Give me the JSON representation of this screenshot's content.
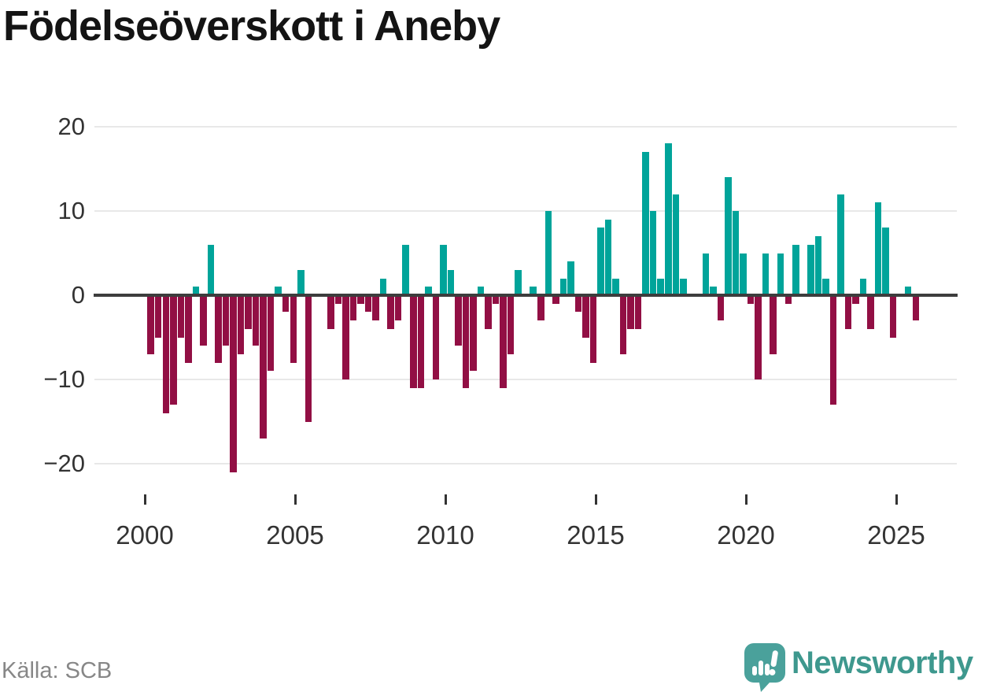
{
  "title": "Födelseöverskott i Aneby",
  "source": "Källa: SCB",
  "branding": {
    "name": "Newsworthy"
  },
  "chart_data": {
    "type": "bar",
    "frequency": "quarterly",
    "start": "2000-Q1",
    "end": "2025-Q3",
    "values_by_year": {
      "2000": [
        -7,
        -5,
        -14,
        -13
      ],
      "2001": [
        -5,
        -8,
        1,
        -6
      ],
      "2002": [
        6,
        -8,
        -6,
        -21
      ],
      "2003": [
        -7,
        -4,
        -6,
        -17
      ],
      "2004": [
        -9,
        1,
        -2,
        -8
      ],
      "2005": [
        3,
        -15,
        0,
        0
      ],
      "2006": [
        -4,
        -1,
        -10,
        -3
      ],
      "2007": [
        -1,
        -2,
        -3,
        2
      ],
      "2008": [
        -4,
        -3,
        6,
        -11
      ],
      "2009": [
        -11,
        1,
        -10,
        6
      ],
      "2010": [
        3,
        -6,
        -11,
        -9
      ],
      "2011": [
        1,
        -4,
        -1,
        -11
      ],
      "2012": [
        -7,
        3,
        0,
        1
      ],
      "2013": [
        -3,
        10,
        -1,
        2
      ],
      "2014": [
        4,
        -2,
        -5,
        -8
      ],
      "2015": [
        8,
        9,
        2,
        -7
      ],
      "2016": [
        -4,
        -4,
        17,
        10
      ],
      "2017": [
        2,
        18,
        12,
        2
      ],
      "2018": [
        0,
        0,
        5,
        1
      ],
      "2019": [
        -3,
        14,
        10,
        5
      ],
      "2020": [
        -1,
        -10,
        5,
        -7
      ],
      "2021": [
        5,
        -1,
        6,
        0
      ],
      "2022": [
        6,
        7,
        2,
        -13
      ],
      "2023": [
        12,
        -4,
        -1,
        2
      ],
      "2024": [
        -4,
        11,
        8,
        -5
      ],
      "2025": [
        0,
        1,
        -3
      ]
    },
    "x_tick_years": [
      2000,
      2005,
      2010,
      2015,
      2020,
      2025
    ],
    "y_ticks": [
      20,
      10,
      0,
      -10,
      -20
    ],
    "ylim": [
      -22,
      20
    ],
    "grid": "horizontal",
    "legend": "none",
    "colors": {
      "positive_bar": "#00a49a",
      "negative_bar": "#920f44",
      "zero_line": "#3d3d3d",
      "grid_line": "#e8e8e8",
      "axis_text": "#333333",
      "title_text": "#141414",
      "source_text": "#878787",
      "logo_icon": "#4aa19b",
      "logo_text": "#3e988e"
    }
  }
}
